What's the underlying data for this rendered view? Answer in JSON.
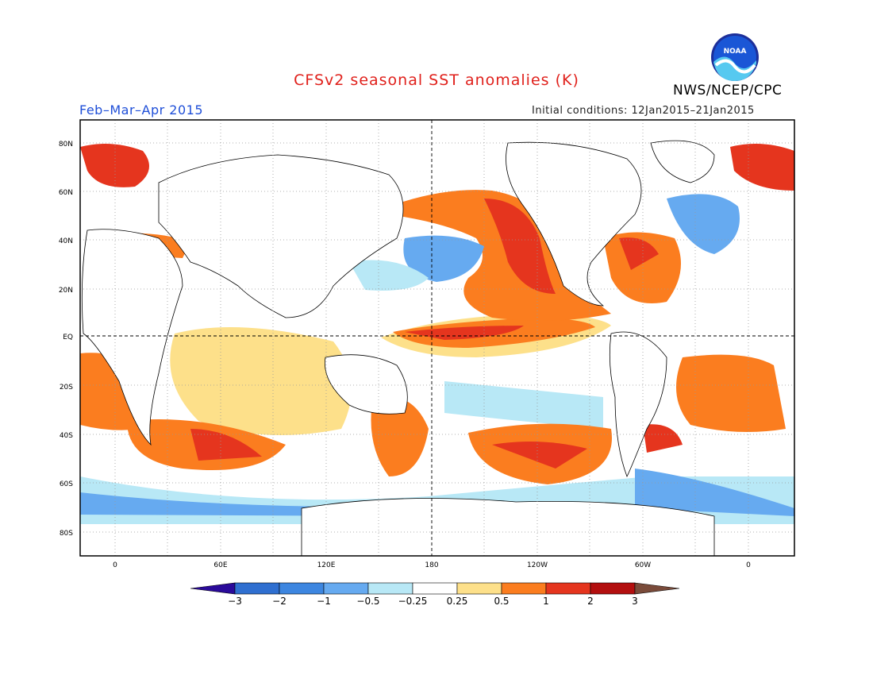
{
  "title": "CFSv2 seasonal SST anomalies (K)",
  "agency": "NWS/NCEP/CPC",
  "logo_text": "NOAA",
  "period": "Feb–Mar–Apr 2015",
  "initial_conditions": "Initial conditions: 12Jan2015–21Jan2015",
  "lat_labels": [
    "80N",
    "60N",
    "40N",
    "20N",
    "EQ",
    "20S",
    "40S",
    "60S",
    "80S"
  ],
  "lon_labels": [
    "0",
    "60E",
    "120E",
    "180",
    "120W",
    "60W",
    "0"
  ],
  "colorbar": {
    "levels": [
      "−3",
      "−2",
      "−1",
      "−0.5",
      "−0.25",
      "0.25",
      "0.5",
      "1",
      "2",
      "3"
    ],
    "colors": [
      "#2a0a9a",
      "#2f6fd0",
      "#3d86e0",
      "#66aaf0",
      "#b8e8f6",
      "#ffffff",
      "#fde08a",
      "#fb7d1f",
      "#e5351e",
      "#b30f0f",
      "#7a4b3a"
    ]
  },
  "map_colors": {
    "warm_1": "#fde08a",
    "warm_2": "#fb7d1f",
    "warm_3": "#e5351e",
    "warm_4": "#b30f0f",
    "cool_1": "#b8e8f6",
    "cool_2": "#66aaf0",
    "cool_3": "#3d86e0",
    "land_outline": "#000000"
  }
}
